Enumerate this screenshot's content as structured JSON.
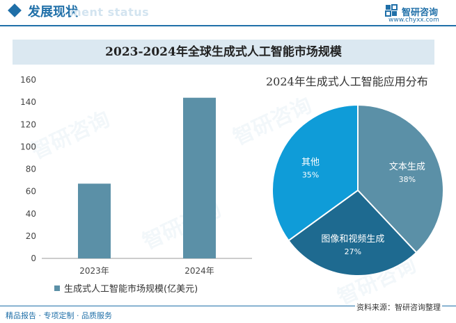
{
  "header": {
    "section_title": "发展现状",
    "section_subtitle": "ment status",
    "logo_text": "智研咨询",
    "logo_url": "www.chyxx.com"
  },
  "footer": {
    "left_text": "精品报告 · 专项定制 · 品质服务",
    "source_text": "资料来源：智研咨询整理"
  },
  "watermark_text": "智研咨询",
  "colors": {
    "bar": "#5b90a7",
    "text_series": "#5b90a7",
    "video_series": "#1e6a90",
    "other_series": "#0f9cd8",
    "accent": "#1f6fa8"
  },
  "chart_data": [
    {
      "type": "bar",
      "title": "2023-2024年全球生成式人工智能市场规模",
      "categories": [
        "2023年",
        "2024年"
      ],
      "series": [
        {
          "name": "生成式人工智能市场规模(亿美元)",
          "values": [
            67,
            144
          ]
        }
      ],
      "ylim": [
        0,
        160
      ],
      "yticks": [
        "0",
        "20",
        "40",
        "60",
        "80",
        "100",
        "120",
        "140",
        "160"
      ],
      "grid": false,
      "legend": "bottom-left"
    },
    {
      "type": "pie",
      "title": "2024年生成式人工智能应用分布",
      "slices": [
        {
          "label": "文本生成",
          "value": 38,
          "value_label": "38%"
        },
        {
          "label": "图像和视频生成",
          "value": 27,
          "value_label": "27%"
        },
        {
          "label": "其他",
          "value": 35,
          "value_label": "35%"
        }
      ]
    }
  ]
}
